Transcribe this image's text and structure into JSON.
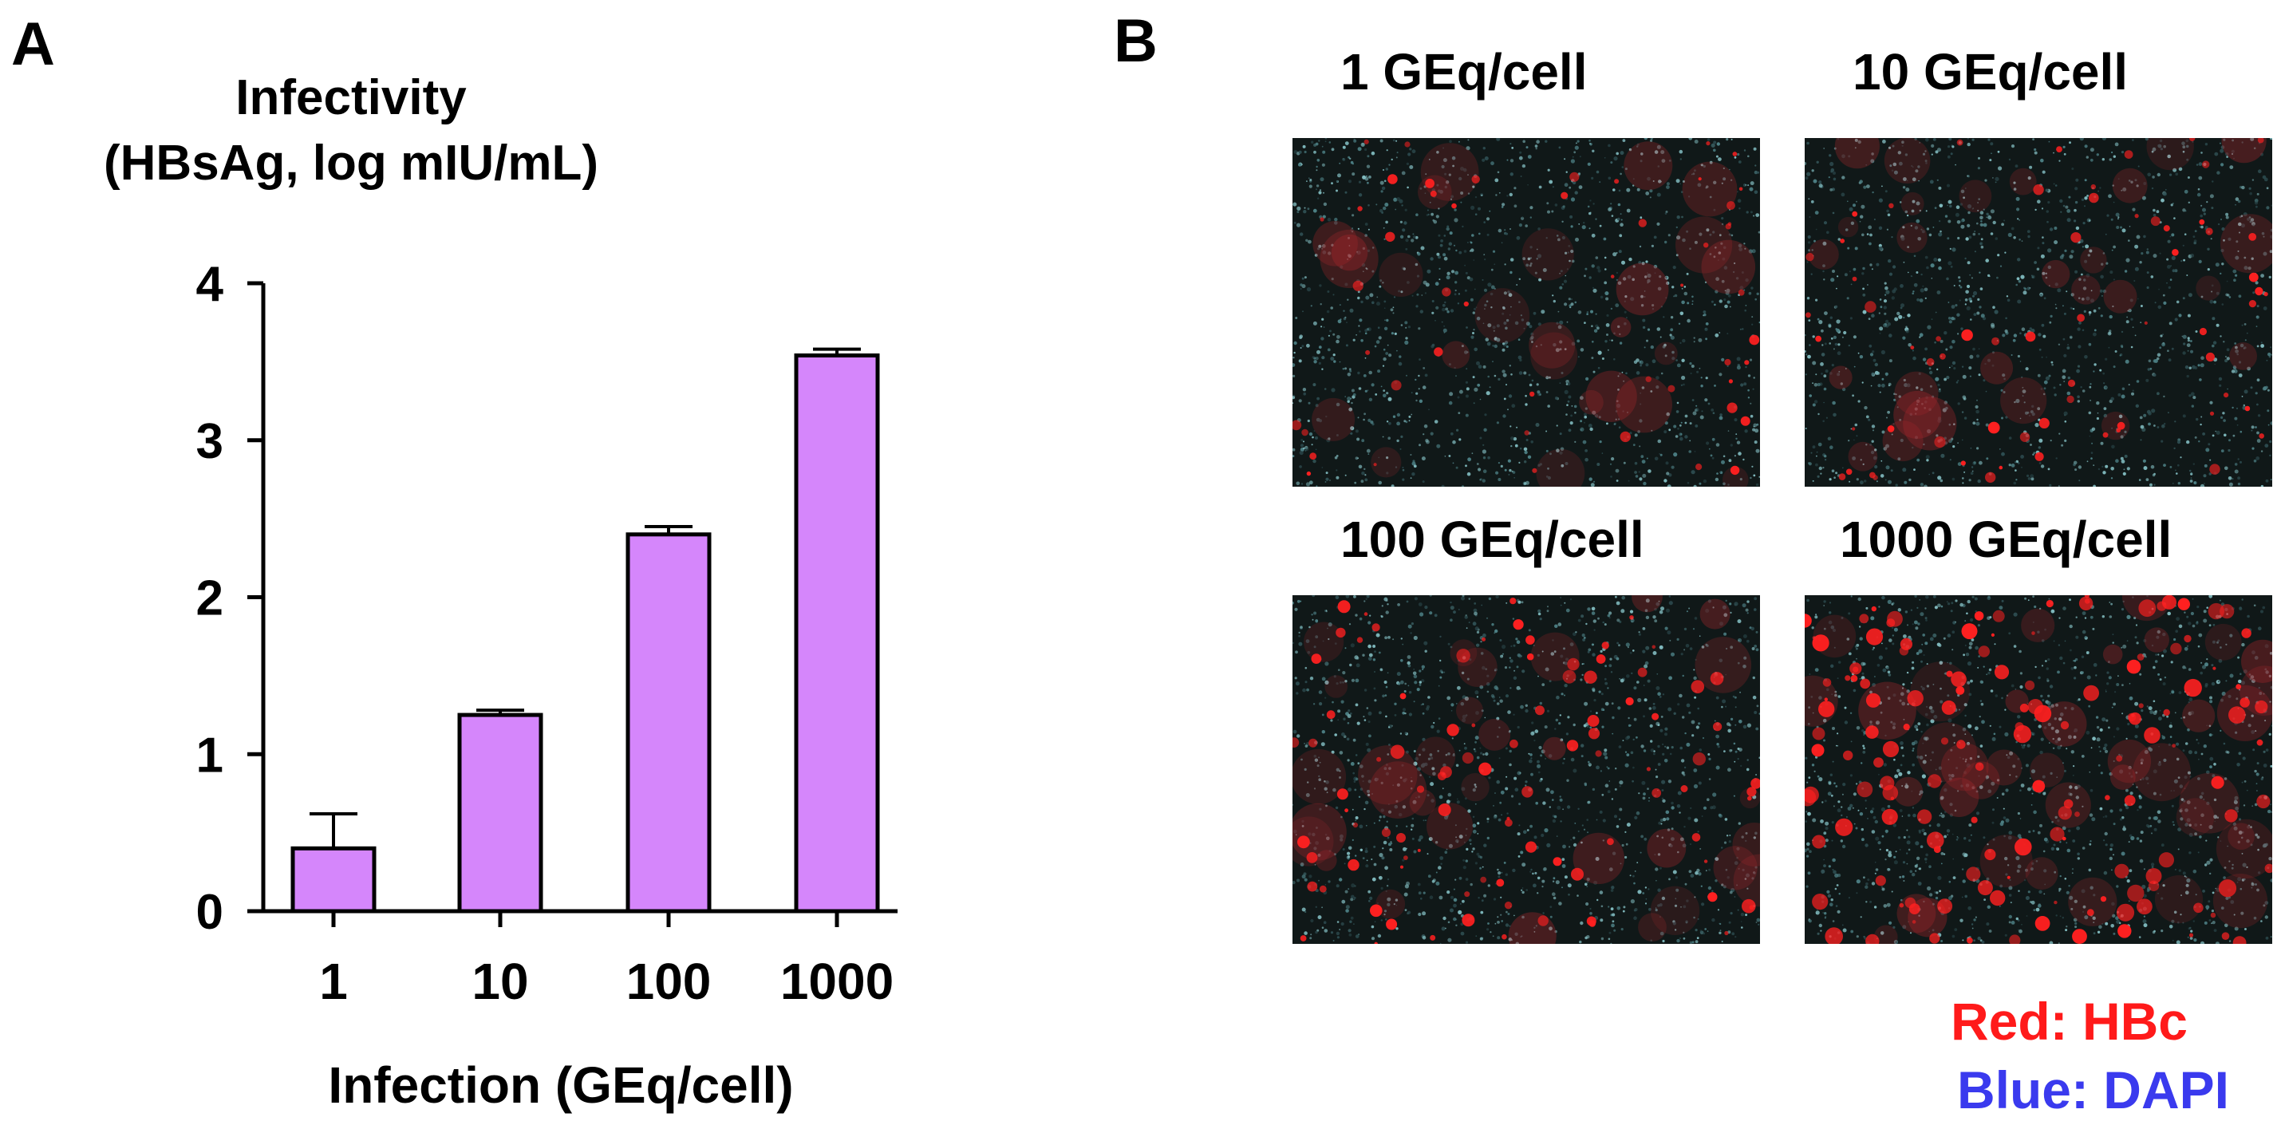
{
  "panels": {
    "a": {
      "letter": "A"
    },
    "b": {
      "letter": "B"
    }
  },
  "chart_data": {
    "type": "bar",
    "title": "",
    "ylabel_lines": [
      "Infectivity",
      "(HBsAg, log mIU/mL)"
    ],
    "xlabel": "Infection (GEq/cell)",
    "categories": [
      "1",
      "10",
      "100",
      "1000"
    ],
    "values": [
      0.4,
      1.25,
      2.4,
      3.54
    ],
    "errors": [
      0.22,
      0.03,
      0.05,
      0.04
    ],
    "ylim": [
      0,
      4
    ],
    "yticks": [
      "0",
      "1",
      "2",
      "3",
      "4"
    ],
    "grid": false,
    "bar_color": "#d586fb",
    "bar_edge_color": "#000000"
  },
  "micrographs": [
    {
      "caption": "1 GEq/cell",
      "hbc_density": 0.25
    },
    {
      "caption": "10 GEq/cell",
      "hbc_density": 0.35
    },
    {
      "caption": "100 GEq/cell",
      "hbc_density": 0.55
    },
    {
      "caption": "1000 GEq/cell",
      "hbc_density": 0.9
    }
  ],
  "legend": {
    "red": {
      "text": "Red: HBc",
      "color": "#ff1a1a"
    },
    "blue": {
      "text": "Blue: DAPI",
      "color": "#3a3aee"
    }
  }
}
